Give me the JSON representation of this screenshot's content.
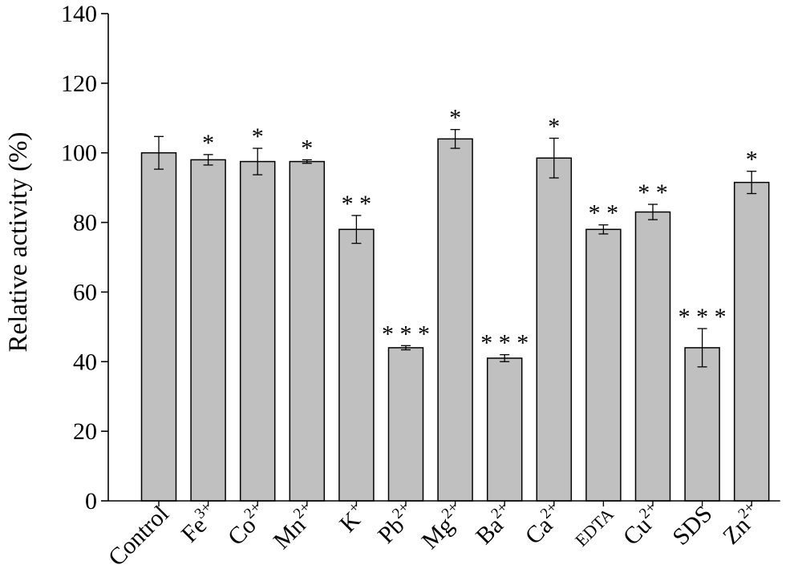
{
  "chart_data": {
    "type": "bar",
    "title": "",
    "xlabel": "",
    "ylabel": "Relative activity (%)",
    "ylim": [
      0,
      140
    ],
    "yticks": [
      0,
      20,
      40,
      60,
      80,
      100,
      120,
      140
    ],
    "grid": false,
    "legend": "none",
    "bar_color": "#c0c0c0",
    "bar_edge_color": "#000000",
    "categories": [
      {
        "base": "Control",
        "sup": ""
      },
      {
        "base": "Fe",
        "sup": "3+"
      },
      {
        "base": "Co",
        "sup": "2+"
      },
      {
        "base": "Mn",
        "sup": "2+"
      },
      {
        "base": "K",
        "sup": "+"
      },
      {
        "base": "Pb",
        "sup": "2+"
      },
      {
        "base": "Mg",
        "sup": "2+"
      },
      {
        "base": "Ba",
        "sup": "2+"
      },
      {
        "base": "Ca",
        "sup": "2+"
      },
      {
        "base": "EDTA",
        "sup": ""
      },
      {
        "base": "Cu",
        "sup": "2+"
      },
      {
        "base": "SDS",
        "sup": ""
      },
      {
        "base": "Zn",
        "sup": "2+"
      }
    ],
    "values": [
      100,
      98,
      97.5,
      97.5,
      78,
      44,
      104,
      41,
      98.5,
      78,
      83,
      44,
      91.5
    ],
    "errors": [
      4.7,
      1.5,
      3.8,
      0.5,
      4,
      0.6,
      2.7,
      1,
      5.7,
      1.3,
      2.2,
      5.5,
      3.2
    ],
    "significance": [
      "",
      "*",
      "*",
      "*",
      "* *",
      "* * *",
      "*",
      "* * *",
      "*",
      "* *",
      "* *",
      "* * *",
      "*"
    ]
  }
}
